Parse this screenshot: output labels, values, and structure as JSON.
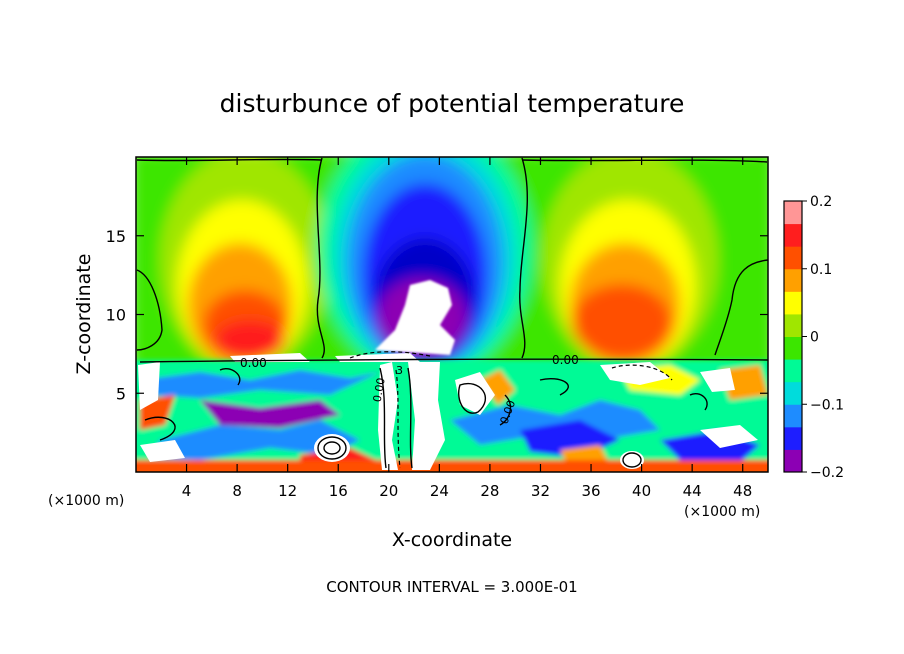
{
  "chart_data": {
    "type": "heatmap",
    "title": "disturbunce of potential temperature",
    "xlabel": "X-coordinate",
    "ylabel": "Z-coordinate",
    "x_unit": "(×1000 m)",
    "x_unit_right": "(×1000 m)",
    "xlim": [
      0,
      50
    ],
    "ylim": [
      0,
      20
    ],
    "x_ticks": [
      4,
      8,
      12,
      16,
      20,
      24,
      28,
      32,
      36,
      40,
      44,
      48
    ],
    "y_ticks": [
      5,
      10,
      15
    ],
    "colorbar": {
      "range": [
        -0.2,
        0.2
      ],
      "tick_values": [
        0.2,
        0.1,
        0,
        -0.1,
        -0.2
      ],
      "tick_labels": [
        "0.2",
        "0.1",
        "0",
        "−0.1",
        "−0.2"
      ],
      "colors": [
        "#8c00b4",
        "#1e1eff",
        "#1e8cff",
        "#00dcdc",
        "#00fa96",
        "#3ce600",
        "#a0e600",
        "#ffff00",
        "#ffa000",
        "#ff5000",
        "#ff1e1e",
        "#ff9696"
      ]
    },
    "contour_labels": [
      "0.00",
      "0.00",
      "0.00",
      "0.00",
      "3"
    ],
    "footer": "CONTOUR INTERVAL = 3.000E-01",
    "features": [
      {
        "name": "cold anomaly",
        "x_center": 24,
        "z_center": 14,
        "value": -0.2
      },
      {
        "name": "warm anomaly left",
        "x_center": 9,
        "z_center": 11,
        "value": 0.15
      },
      {
        "name": "warm anomaly right",
        "x_center": 37,
        "z_center": 11,
        "value": 0.15
      },
      {
        "name": "turbulent layer",
        "z_top": 7.2
      }
    ]
  }
}
